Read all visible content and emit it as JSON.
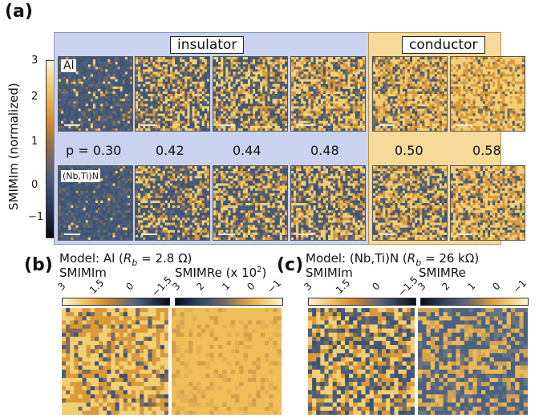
{
  "labels": {
    "panel_a": "(a)",
    "panel_b": "(b)",
    "panel_c": "(c)",
    "insulator": "insulator",
    "conductor": "conductor",
    "row1_material": "Al",
    "row2_material": "(Nb,Ti)N",
    "colorbar_title": "SMIMIm (normalized)",
    "colorbar_ticks": [
      "3",
      "2",
      "1",
      "0",
      "−1"
    ]
  },
  "p_values": [
    "p = 0.30",
    "0.42",
    "0.44",
    "0.48",
    "0.50",
    "0.58"
  ],
  "model_b": {
    "title_prefix": "Model: Al (",
    "rb_symbol": "R",
    "rb_sub": "b",
    "title_suffix": " = 2.8 Ω)",
    "left_label": "SMIMIm",
    "right_label": "SMIMRe (x 10",
    "right_label_sup": "2",
    "right_label_close": ")",
    "left_ticks": [
      "3",
      "1.5",
      "0",
      "−1.5"
    ],
    "right_ticks": [
      "3",
      "2",
      "1",
      "0",
      "−1"
    ]
  },
  "model_c": {
    "title_prefix": "Model: (Nb,Ti)N (",
    "rb_symbol": "R",
    "rb_sub": "b",
    "title_suffix": " = 26 kΩ)",
    "left_label": "SMIMIm",
    "right_label": "SMIMRe",
    "left_ticks": [
      "3",
      "1.5",
      "0",
      "−1.5"
    ],
    "right_ticks": [
      "3",
      "2",
      "1",
      "0",
      "−1"
    ]
  },
  "colors": {
    "insulator_bg": "#c9d3ef",
    "conductor_bg": "#f7d99a",
    "dark_blue": "#3f5575",
    "mid_orange": "#d9993a",
    "light_yellow": "#f7e19b"
  }
}
